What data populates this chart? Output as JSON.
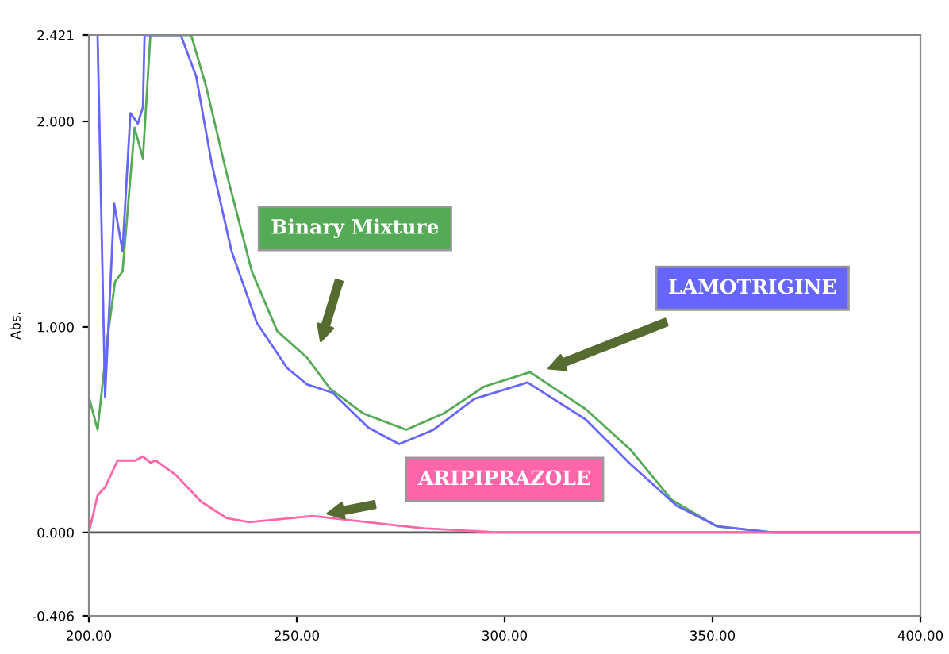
{
  "chart_data": {
    "type": "line",
    "ylabel": "Abs.",
    "xlim": [
      200,
      400
    ],
    "ylim": [
      -0.406,
      2.421
    ],
    "xticks": [
      {
        "value": 200,
        "label": "200.00"
      },
      {
        "value": 250,
        "label": "250.00"
      },
      {
        "value": 300,
        "label": "300.00"
      },
      {
        "value": 350,
        "label": "350.00"
      },
      {
        "value": 400,
        "label": "400.00"
      }
    ],
    "yticks": [
      {
        "value": -0.406,
        "label": "-0.406"
      },
      {
        "value": 0,
        "label": "0.000"
      },
      {
        "value": 1,
        "label": "1.000"
      },
      {
        "value": 2,
        "label": "2.000"
      },
      {
        "value": 2.421,
        "label": "2.421"
      }
    ],
    "grid": false,
    "legend": false,
    "ref_lines": [
      {
        "axis": "y",
        "value": 0,
        "color": "#555555"
      }
    ],
    "series": [
      {
        "name": "Binary Mixture",
        "color": "#55aa55",
        "x": [
          200,
          202.1,
          204.5,
          206.3,
          208.1,
          211,
          213,
          214.8,
          224.6,
          228.2,
          233.1,
          239.2,
          245.3,
          252.5,
          258,
          265.9,
          276.3,
          285.4,
          295.1,
          306.1,
          319.5,
          330.4,
          340.1,
          351,
          364.5,
          400
        ],
        "values": [
          0.66,
          0.5,
          0.95,
          1.22,
          1.27,
          1.97,
          1.82,
          2.421,
          2.421,
          2.17,
          1.75,
          1.27,
          0.98,
          0.85,
          0.7,
          0.58,
          0.5,
          0.58,
          0.71,
          0.78,
          0.6,
          0.4,
          0.16,
          0.03,
          0,
          0
        ]
      },
      {
        "name": "LAMOTRIGINE",
        "color": "#6666ff",
        "x": [
          202.1,
          203.9,
          206.1,
          208.1,
          210,
          211.8,
          213,
          213.4,
          222.1,
          225.8,
          229.5,
          234.3,
          240.4,
          247.7,
          252.5,
          258.6,
          267.2,
          274.6,
          282.9,
          292.7,
          305.5,
          319.5,
          330.4,
          341.4,
          351.1,
          364.5,
          400
        ],
        "values": [
          2.421,
          0.66,
          1.6,
          1.37,
          2.04,
          1.99,
          2.07,
          2.421,
          2.421,
          2.22,
          1.8,
          1.37,
          1.02,
          0.8,
          0.72,
          0.68,
          0.51,
          0.43,
          0.5,
          0.65,
          0.73,
          0.55,
          0.33,
          0.13,
          0.03,
          0,
          0
        ]
      },
      {
        "name": "ARIPIPRAZOLE",
        "color": "#ff66aa",
        "x": [
          200,
          202.1,
          203.9,
          206.9,
          211.2,
          213,
          214.8,
          216.1,
          220.9,
          227,
          233.1,
          238.6,
          253.8,
          280.5,
          298.8,
          400
        ],
        "values": [
          0,
          0.18,
          0.22,
          0.35,
          0.35,
          0.37,
          0.34,
          0.35,
          0.28,
          0.15,
          0.07,
          0.05,
          0.08,
          0.02,
          0,
          0
        ]
      }
    ]
  }
}
